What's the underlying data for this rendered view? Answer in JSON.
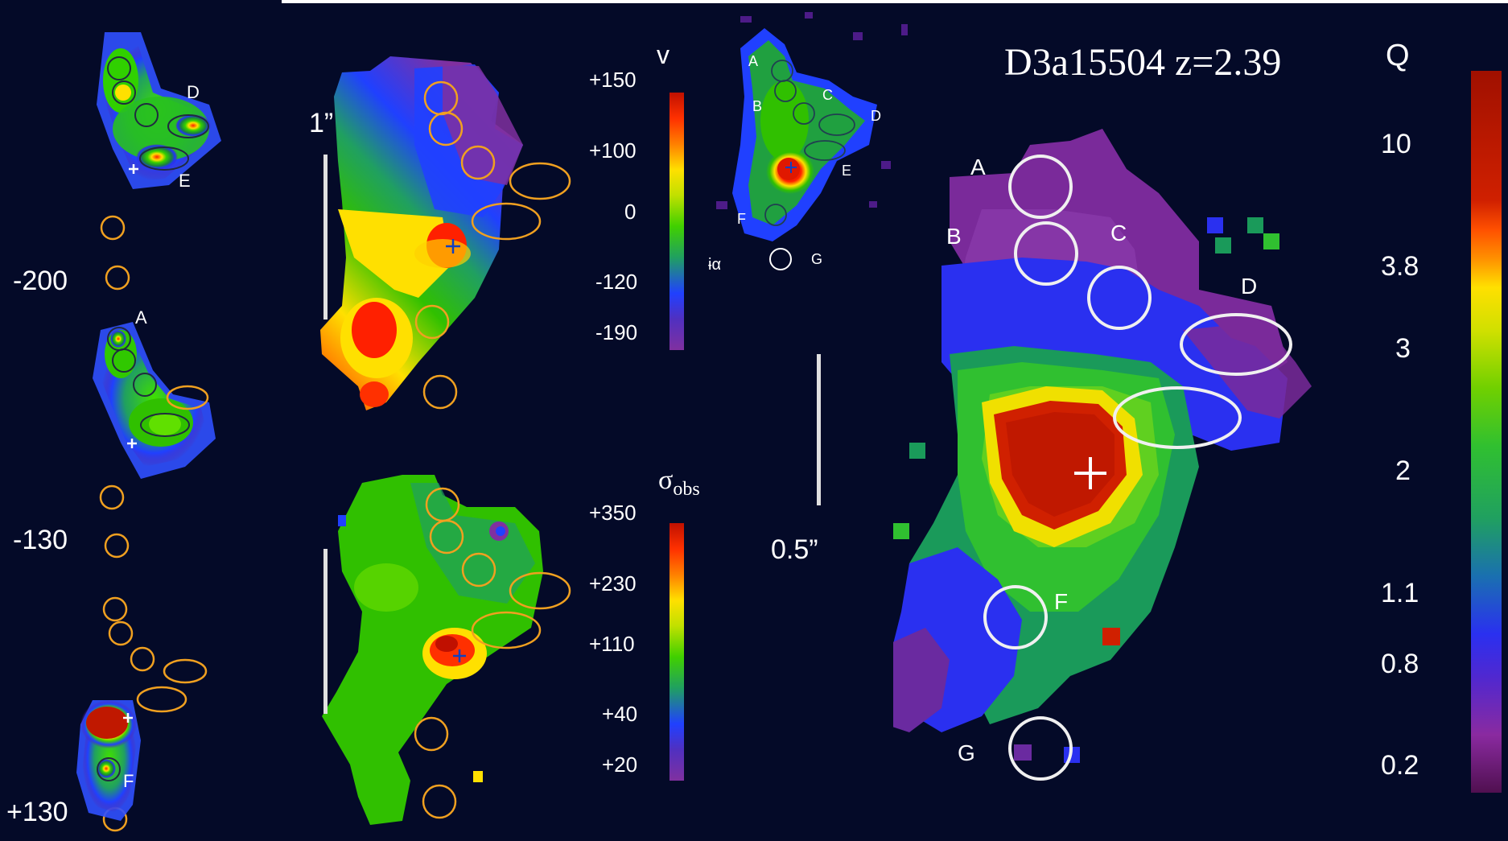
{
  "title": "D3a15504 z=2.39",
  "left_panel": {
    "channel_labels": [
      "-200",
      "-130",
      "+130"
    ],
    "top_labels": [
      "D",
      "E"
    ],
    "mid_labels": [
      "A"
    ],
    "bottom_labels": [
      "F"
    ]
  },
  "velocity_map": {
    "scale_label": "1”",
    "colorbar_label": "v",
    "ticks": [
      "+150",
      "+100",
      "0",
      "-120",
      "-190"
    ]
  },
  "dispersion_map": {
    "colorbar_label_main": "σ",
    "colorbar_label_sub": "obs",
    "ticks": [
      "+350",
      "+230",
      "+110",
      "+40",
      "+20"
    ]
  },
  "halpha_map": {
    "clump_labels": [
      "A",
      "B",
      "C",
      "D",
      "E",
      "F",
      "G"
    ],
    "partial_label": "ɨα",
    "scale_label": "0.5”"
  },
  "q_map": {
    "clump_labels": [
      "A",
      "B",
      "C",
      "D",
      "F",
      "G"
    ],
    "colorbar_label": "Q",
    "ticks": [
      "10",
      "3.8",
      "3",
      "2",
      "1.1",
      "0.8",
      "0.2"
    ]
  }
}
